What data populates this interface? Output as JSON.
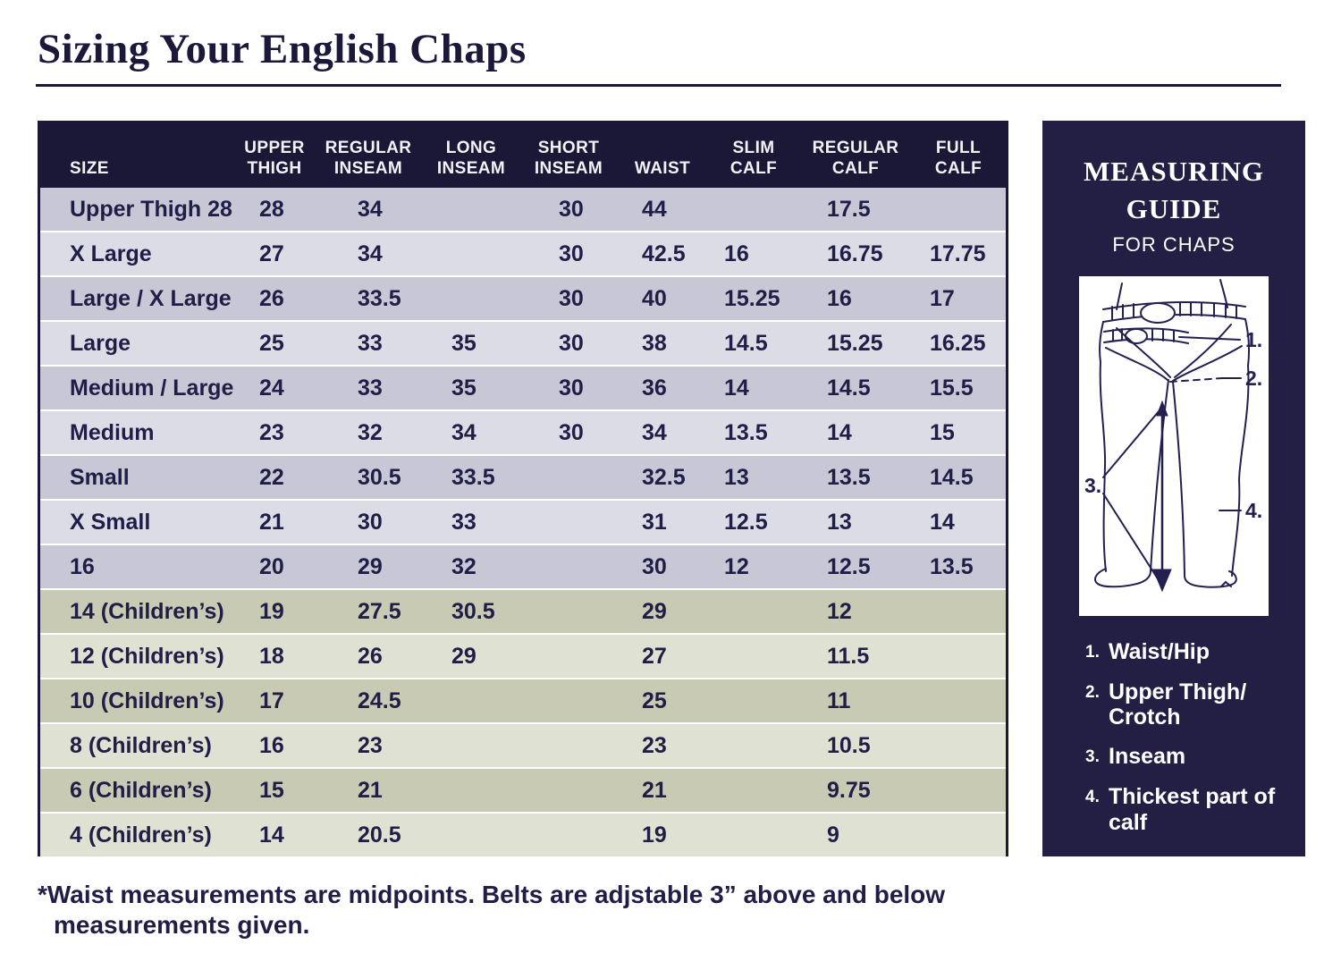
{
  "page": {
    "title": "Sizing Your English Chaps",
    "footnote_line1": "*Waist measurements are midpoints. Belts are adjstable 3” above and below",
    "footnote_line2": "measurements given."
  },
  "colors": {
    "header_bg": "#1b1736",
    "panel_bg": "#221e44",
    "adult_dark": "#c7c7d6",
    "adult_light": "#dcdce7",
    "child_dark": "#c9cab3",
    "child_light": "#dfe2d3",
    "text_navy": "#201d47",
    "title_navy": "#1b1839",
    "white": "#ffffff"
  },
  "table": {
    "columns": [
      "SIZE",
      "UPPER\nTHIGH",
      "REGULAR\nINSEAM",
      "LONG\nINSEAM",
      "SHORT\nINSEAM",
      "WAIST",
      "SLIM\nCALF",
      "REGULAR\nCALF",
      "FULL\nCALF"
    ],
    "rows": [
      {
        "size": "Upper Thigh 28",
        "upper_thigh": "28",
        "regular_inseam": "34",
        "long_inseam": "",
        "short_inseam": "30",
        "waist": "44",
        "slim_calf": "",
        "regular_calf": "17.5",
        "full_calf": "",
        "tone": "a-dark"
      },
      {
        "size": "X Large",
        "upper_thigh": "27",
        "regular_inseam": "34",
        "long_inseam": "",
        "short_inseam": "30",
        "waist": "42.5",
        "slim_calf": "16",
        "regular_calf": "16.75",
        "full_calf": "17.75",
        "tone": "a-light"
      },
      {
        "size": "Large / X Large",
        "upper_thigh": "26",
        "regular_inseam": "33.5",
        "long_inseam": "",
        "short_inseam": "30",
        "waist": "40",
        "slim_calf": "15.25",
        "regular_calf": "16",
        "full_calf": "17",
        "tone": "a-dark"
      },
      {
        "size": "Large",
        "upper_thigh": "25",
        "regular_inseam": "33",
        "long_inseam": "35",
        "short_inseam": "30",
        "waist": "38",
        "slim_calf": "14.5",
        "regular_calf": "15.25",
        "full_calf": "16.25",
        "tone": "a-light"
      },
      {
        "size": "Medium / Large",
        "upper_thigh": "24",
        "regular_inseam": "33",
        "long_inseam": "35",
        "short_inseam": "30",
        "waist": "36",
        "slim_calf": "14",
        "regular_calf": "14.5",
        "full_calf": "15.5",
        "tone": "a-dark"
      },
      {
        "size": "Medium",
        "upper_thigh": "23",
        "regular_inseam": "32",
        "long_inseam": "34",
        "short_inseam": "30",
        "waist": "34",
        "slim_calf": "13.5",
        "regular_calf": "14",
        "full_calf": "15",
        "tone": "a-light"
      },
      {
        "size": "Small",
        "upper_thigh": "22",
        "regular_inseam": "30.5",
        "long_inseam": "33.5",
        "short_inseam": "",
        "waist": "32.5",
        "slim_calf": "13",
        "regular_calf": "13.5",
        "full_calf": "14.5",
        "tone": "a-dark"
      },
      {
        "size": "X Small",
        "upper_thigh": "21",
        "regular_inseam": "30",
        "long_inseam": "33",
        "short_inseam": "",
        "waist": "31",
        "slim_calf": "12.5",
        "regular_calf": "13",
        "full_calf": "14",
        "tone": "a-light"
      },
      {
        "size": "16",
        "upper_thigh": "20",
        "regular_inseam": "29",
        "long_inseam": "32",
        "short_inseam": "",
        "waist": "30",
        "slim_calf": "12",
        "regular_calf": "12.5",
        "full_calf": "13.5",
        "tone": "a-dark"
      },
      {
        "size": "14 (Children’s)",
        "upper_thigh": "19",
        "regular_inseam": "27.5",
        "long_inseam": "30.5",
        "short_inseam": "",
        "waist": "29",
        "slim_calf": "",
        "regular_calf": "12",
        "full_calf": "",
        "tone": "c-dark"
      },
      {
        "size": "12 (Children’s)",
        "upper_thigh": "18",
        "regular_inseam": "26",
        "long_inseam": "29",
        "short_inseam": "",
        "waist": "27",
        "slim_calf": "",
        "regular_calf": "11.5",
        "full_calf": "",
        "tone": "c-light"
      },
      {
        "size": "10 (Children’s)",
        "upper_thigh": "17",
        "regular_inseam": "24.5",
        "long_inseam": "",
        "short_inseam": "",
        "waist": "25",
        "slim_calf": "",
        "regular_calf": "11",
        "full_calf": "",
        "tone": "c-dark"
      },
      {
        "size": "8 (Children’s)",
        "upper_thigh": "16",
        "regular_inseam": "23",
        "long_inseam": "",
        "short_inseam": "",
        "waist": "23",
        "slim_calf": "",
        "regular_calf": "10.5",
        "full_calf": "",
        "tone": "c-light"
      },
      {
        "size": "6 (Children’s)",
        "upper_thigh": "15",
        "regular_inseam": "21",
        "long_inseam": "",
        "short_inseam": "",
        "waist": "21",
        "slim_calf": "",
        "regular_calf": "9.75",
        "full_calf": "",
        "tone": "c-dark"
      },
      {
        "size": "4 (Children’s)",
        "upper_thigh": "14",
        "regular_inseam": "20.5",
        "long_inseam": "",
        "short_inseam": "",
        "waist": "19",
        "slim_calf": "",
        "regular_calf": "9",
        "full_calf": "",
        "tone": "c-light"
      }
    ]
  },
  "guide": {
    "title": "MEASURING\nGUIDE",
    "subtitle": "FOR CHAPS",
    "figure_labels": [
      "1.",
      "2.",
      "3.",
      "4."
    ],
    "legend": [
      {
        "num": "1.",
        "label": "Waist/Hip"
      },
      {
        "num": "2.",
        "label": "Upper Thigh/ Crotch"
      },
      {
        "num": "3.",
        "label": "Inseam"
      },
      {
        "num": "4.",
        "label": "Thickest part of calf"
      }
    ]
  }
}
